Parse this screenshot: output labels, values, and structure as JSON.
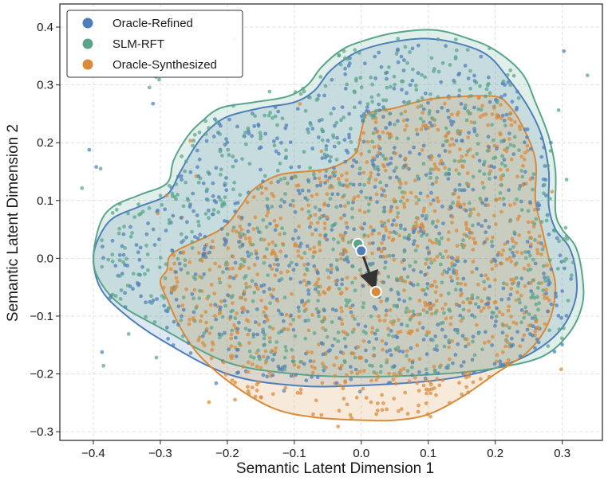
{
  "chart_data": {
    "type": "scatter",
    "title": "",
    "xlabel": "Semantic Latent Dimension 1",
    "ylabel": "Semantic Latent Dimension 2",
    "xlim": [
      -0.45,
      0.36
    ],
    "ylim": [
      -0.315,
      0.44
    ],
    "xticks": [
      -0.4,
      -0.3,
      -0.2,
      -0.1,
      0.0,
      0.1,
      0.2,
      0.3
    ],
    "yticks": [
      -0.3,
      -0.2,
      -0.1,
      0.0,
      0.1,
      0.2,
      0.3,
      0.4
    ],
    "xtick_labels": [
      "−0.4",
      "−0.3",
      "−0.2",
      "−0.1",
      "0.0",
      "0.1",
      "0.2",
      "0.3"
    ],
    "ytick_labels": [
      "−0.3",
      "−0.2",
      "−0.1",
      "0.0",
      "0.1",
      "0.2",
      "0.3",
      "0.4"
    ],
    "grid": true,
    "legend_position": "top-left",
    "series": [
      {
        "name": "Oracle-Refined",
        "color": "#4e7fb8",
        "centroid": [
          0.0,
          0.013
        ],
        "hull": [
          [
            -0.39,
            0.04
          ],
          [
            -0.37,
            0.07
          ],
          [
            -0.33,
            0.09
          ],
          [
            -0.29,
            0.11
          ],
          [
            -0.27,
            0.15
          ],
          [
            -0.25,
            0.19
          ],
          [
            -0.23,
            0.22
          ],
          [
            -0.2,
            0.245
          ],
          [
            -0.15,
            0.26
          ],
          [
            -0.1,
            0.27
          ],
          [
            -0.07,
            0.29
          ],
          [
            -0.05,
            0.32
          ],
          [
            -0.03,
            0.34
          ],
          [
            0.0,
            0.36
          ],
          [
            0.05,
            0.375
          ],
          [
            0.1,
            0.38
          ],
          [
            0.15,
            0.37
          ],
          [
            0.19,
            0.35
          ],
          [
            0.22,
            0.31
          ],
          [
            0.25,
            0.26
          ],
          [
            0.27,
            0.21
          ],
          [
            0.28,
            0.15
          ],
          [
            0.28,
            0.09
          ],
          [
            0.29,
            0.05
          ],
          [
            0.31,
            0.02
          ],
          [
            0.32,
            -0.02
          ],
          [
            0.32,
            -0.07
          ],
          [
            0.3,
            -0.12
          ],
          [
            0.26,
            -0.16
          ],
          [
            0.2,
            -0.19
          ],
          [
            0.12,
            -0.21
          ],
          [
            0.0,
            -0.22
          ],
          [
            -0.1,
            -0.22
          ],
          [
            -0.2,
            -0.2
          ],
          [
            -0.3,
            -0.14
          ],
          [
            -0.36,
            -0.09
          ],
          [
            -0.39,
            -0.05
          ],
          [
            -0.4,
            0.0
          ]
        ]
      },
      {
        "name": "SLM-RFT",
        "color": "#5aa58a",
        "centroid": [
          -0.005,
          0.025
        ],
        "hull": [
          [
            -0.39,
            0.06
          ],
          [
            -0.37,
            0.09
          ],
          [
            -0.33,
            0.11
          ],
          [
            -0.29,
            0.13
          ],
          [
            -0.28,
            0.17
          ],
          [
            -0.26,
            0.21
          ],
          [
            -0.24,
            0.235
          ],
          [
            -0.21,
            0.26
          ],
          [
            -0.16,
            0.27
          ],
          [
            -0.11,
            0.28
          ],
          [
            -0.08,
            0.3
          ],
          [
            -0.06,
            0.33
          ],
          [
            -0.03,
            0.36
          ],
          [
            0.0,
            0.375
          ],
          [
            0.05,
            0.39
          ],
          [
            0.11,
            0.395
          ],
          [
            0.16,
            0.38
          ],
          [
            0.2,
            0.36
          ],
          [
            0.24,
            0.32
          ],
          [
            0.26,
            0.27
          ],
          [
            0.28,
            0.21
          ],
          [
            0.29,
            0.15
          ],
          [
            0.29,
            0.08
          ],
          [
            0.3,
            0.05
          ],
          [
            0.32,
            0.02
          ],
          [
            0.33,
            -0.03
          ],
          [
            0.33,
            -0.08
          ],
          [
            0.31,
            -0.13
          ],
          [
            0.27,
            -0.17
          ],
          [
            0.2,
            -0.19
          ],
          [
            0.12,
            -0.2
          ],
          [
            0.0,
            -0.205
          ],
          [
            -0.1,
            -0.2
          ],
          [
            -0.2,
            -0.18
          ],
          [
            -0.3,
            -0.12
          ],
          [
            -0.36,
            -0.08
          ],
          [
            -0.39,
            -0.04
          ],
          [
            -0.4,
            0.0
          ]
        ]
      },
      {
        "name": "Oracle-Synthesized",
        "color": "#d98a3a",
        "centroid": [
          0.022,
          -0.058
        ],
        "hull": [
          [
            -0.29,
            -0.02
          ],
          [
            -0.28,
            0.01
          ],
          [
            -0.21,
            0.05
          ],
          [
            -0.18,
            0.09
          ],
          [
            -0.16,
            0.12
          ],
          [
            -0.12,
            0.145
          ],
          [
            -0.05,
            0.155
          ],
          [
            -0.01,
            0.18
          ],
          [
            0.0,
            0.22
          ],
          [
            0.01,
            0.25
          ],
          [
            0.05,
            0.26
          ],
          [
            0.1,
            0.275
          ],
          [
            0.15,
            0.28
          ],
          [
            0.2,
            0.28
          ],
          [
            0.22,
            0.265
          ],
          [
            0.24,
            0.23
          ],
          [
            0.26,
            0.17
          ],
          [
            0.26,
            0.1
          ],
          [
            0.27,
            0.05
          ],
          [
            0.28,
            0.0
          ],
          [
            0.29,
            -0.05
          ],
          [
            0.28,
            -0.11
          ],
          [
            0.25,
            -0.16
          ],
          [
            0.2,
            -0.2
          ],
          [
            0.15,
            -0.24
          ],
          [
            0.1,
            -0.27
          ],
          [
            0.05,
            -0.28
          ],
          [
            0.0,
            -0.28
          ],
          [
            -0.07,
            -0.275
          ],
          [
            -0.13,
            -0.26
          ],
          [
            -0.19,
            -0.22
          ],
          [
            -0.24,
            -0.17
          ],
          [
            -0.27,
            -0.12
          ],
          [
            -0.29,
            -0.07
          ],
          [
            -0.3,
            -0.04
          ]
        ]
      }
    ]
  },
  "legend": [
    {
      "label": "Oracle-Refined",
      "color": "#4e7fb8"
    },
    {
      "label": "SLM-RFT",
      "color": "#5aa58a"
    },
    {
      "label": "Oracle-Synthesized",
      "color": "#d98a3a"
    }
  ]
}
